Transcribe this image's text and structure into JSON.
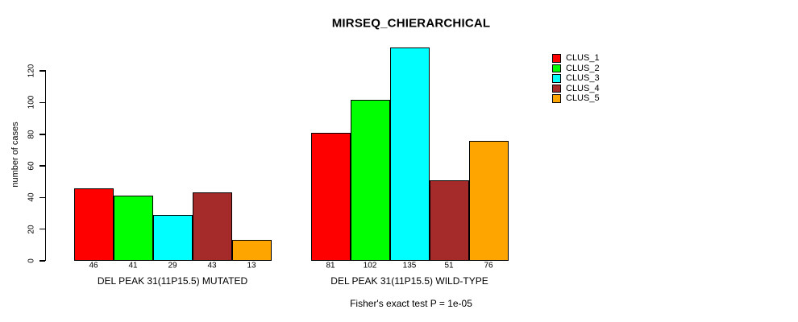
{
  "chart_data": {
    "type": "bar",
    "title": "MIRSEQ_CHIERARCHICAL",
    "ylabel": "number of cases",
    "xlabel": "",
    "categories": [
      "DEL PEAK 31(11P15.5) MUTATED",
      "DEL PEAK 31(11P15.5) WILD-TYPE"
    ],
    "series": [
      {
        "name": "CLUS_1",
        "color": "#FF0000",
        "values": [
          46,
          81
        ]
      },
      {
        "name": "CLUS_2",
        "color": "#00FF00",
        "values": [
          41,
          102
        ]
      },
      {
        "name": "CLUS_3",
        "color": "#00FFFF",
        "values": [
          29,
          135
        ]
      },
      {
        "name": "CLUS_4",
        "color": "#A52A2A",
        "values": [
          43,
          51
        ]
      },
      {
        "name": "CLUS_5",
        "color": "#FFA500",
        "values": [
          13,
          76
        ]
      }
    ],
    "bar_value_labels": {
      "group_1": [
        46,
        41,
        29,
        43,
        13
      ],
      "group_2": [
        81,
        102,
        135,
        51,
        76
      ]
    },
    "yticks": [
      0,
      20,
      40,
      60,
      80,
      100,
      120
    ],
    "ylim": [
      0,
      136
    ],
    "grid": false,
    "legend_position": "top-right",
    "legend_entries": [
      "CLUS_1",
      "CLUS_2",
      "CLUS_3",
      "CLUS_4",
      "CLUS_5"
    ],
    "annotation": "Fisher's exact test P = 1e-05"
  },
  "colors": {
    "background": "#FFFFFF",
    "axis": "#000000",
    "text": "#000000"
  }
}
